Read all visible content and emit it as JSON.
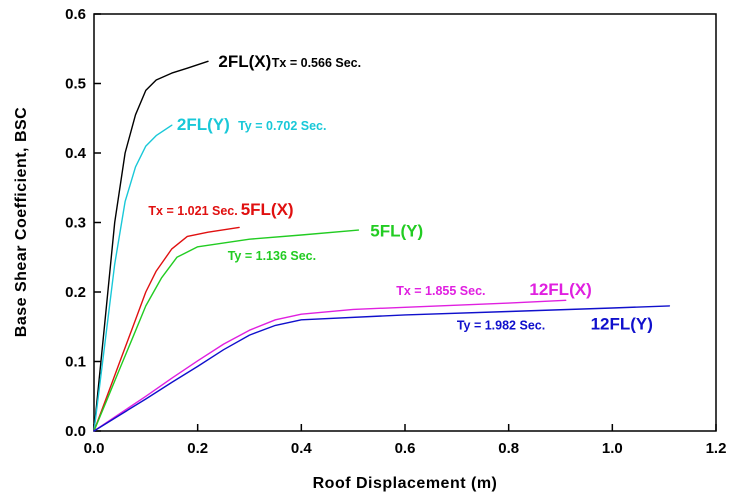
{
  "chart_data": {
    "type": "line",
    "title": "",
    "xlabel": "Roof Displacement (m)",
    "ylabel": "Base Shear Coefficient, BSC",
    "xlim": [
      0.0,
      1.2
    ],
    "ylim": [
      0.0,
      0.6
    ],
    "xticks": [
      0.0,
      0.2,
      0.4,
      0.6,
      0.8,
      1.0,
      1.2
    ],
    "yticks": [
      0.0,
      0.1,
      0.2,
      0.3,
      0.4,
      0.5,
      0.6
    ],
    "xtick_labels": [
      "0.0",
      "0.2",
      "0.4",
      "0.6",
      "0.8",
      "1.0",
      "1.2"
    ],
    "ytick_labels": [
      "0.0",
      "0.1",
      "0.2",
      "0.3",
      "0.4",
      "0.5",
      "0.6"
    ],
    "grid": false,
    "legend": "none",
    "series": [
      {
        "name": "2FL(X)",
        "color": "#000000",
        "x": [
          0.0,
          0.02,
          0.04,
          0.06,
          0.08,
          0.1,
          0.12,
          0.15,
          0.18,
          0.22
        ],
        "y": [
          0.0,
          0.15,
          0.3,
          0.4,
          0.455,
          0.49,
          0.505,
          0.515,
          0.522,
          0.532
        ]
      },
      {
        "name": "2FL(Y)",
        "color": "#19c8d8",
        "x": [
          0.0,
          0.02,
          0.04,
          0.06,
          0.08,
          0.1,
          0.12,
          0.15
        ],
        "y": [
          0.0,
          0.12,
          0.24,
          0.33,
          0.38,
          0.41,
          0.425,
          0.44
        ]
      },
      {
        "name": "5FL(X)",
        "color": "#e01010",
        "x": [
          0.0,
          0.025,
          0.05,
          0.075,
          0.1,
          0.12,
          0.15,
          0.18,
          0.22,
          0.28
        ],
        "y": [
          0.0,
          0.05,
          0.1,
          0.15,
          0.2,
          0.23,
          0.262,
          0.28,
          0.286,
          0.293
        ]
      },
      {
        "name": "5FL(Y)",
        "color": "#22cc22",
        "x": [
          0.0,
          0.025,
          0.05,
          0.075,
          0.1,
          0.13,
          0.16,
          0.2,
          0.3,
          0.4,
          0.51
        ],
        "y": [
          0.0,
          0.045,
          0.09,
          0.135,
          0.18,
          0.22,
          0.25,
          0.265,
          0.276,
          0.282,
          0.289
        ]
      },
      {
        "name": "12FL(X)",
        "color": "#e020e0",
        "x": [
          0.0,
          0.05,
          0.1,
          0.15,
          0.2,
          0.25,
          0.3,
          0.35,
          0.4,
          0.5,
          0.6,
          0.7,
          0.8,
          0.91
        ],
        "y": [
          0.0,
          0.025,
          0.05,
          0.076,
          0.101,
          0.125,
          0.145,
          0.16,
          0.168,
          0.175,
          0.178,
          0.181,
          0.184,
          0.188
        ]
      },
      {
        "name": "12FL(Y)",
        "color": "#1010cc",
        "x": [
          0.0,
          0.05,
          0.1,
          0.15,
          0.2,
          0.25,
          0.3,
          0.35,
          0.4,
          0.6,
          0.8,
          1.0,
          1.11
        ],
        "y": [
          0.0,
          0.023,
          0.046,
          0.07,
          0.093,
          0.117,
          0.138,
          0.152,
          0.16,
          0.167,
          0.172,
          0.177,
          0.18
        ]
      }
    ],
    "annotations": [
      {
        "id": "lbl-2fl-x",
        "text": "2FL(X)",
        "color": "#000000",
        "size": "big",
        "at": [
          0.24,
          0.524
        ]
      },
      {
        "id": "per-2fl-x",
        "text": "Tx = 0.566 Sec.",
        "color": "#000000",
        "size": "small",
        "at": [
          0.343,
          0.524
        ]
      },
      {
        "id": "lbl-2fl-y",
        "text": "2FL(Y)",
        "color": "#19c8d8",
        "size": "big",
        "at": [
          0.16,
          0.433
        ]
      },
      {
        "id": "per-2fl-y",
        "text": "Ty = 0.702 Sec.",
        "color": "#19c8d8",
        "size": "small",
        "at": [
          0.278,
          0.433
        ]
      },
      {
        "id": "per-5fl-x",
        "text": "Tx = 1.021 Sec.",
        "color": "#e01010",
        "size": "small",
        "at": [
          0.105,
          0.311
        ]
      },
      {
        "id": "lbl-5fl-x",
        "text": "5FL(X)",
        "color": "#e01010",
        "size": "big",
        "at": [
          0.283,
          0.311
        ]
      },
      {
        "id": "lbl-5fl-y",
        "text": "5FL(Y)",
        "color": "#22cc22",
        "size": "big",
        "at": [
          0.533,
          0.28
        ]
      },
      {
        "id": "per-5fl-y",
        "text": "Ty = 1.136 Sec.",
        "color": "#22cc22",
        "size": "small",
        "at": [
          0.258,
          0.246
        ]
      },
      {
        "id": "per-12fl-x",
        "text": "Tx = 1.855 Sec.",
        "color": "#e020e0",
        "size": "small",
        "at": [
          0.583,
          0.196
        ]
      },
      {
        "id": "lbl-12fl-x",
        "text": "12FL(X)",
        "color": "#e020e0",
        "size": "big",
        "at": [
          0.84,
          0.196
        ]
      },
      {
        "id": "per-12fl-y",
        "text": "Ty = 1.982 Sec.",
        "color": "#1010cc",
        "size": "small",
        "at": [
          0.7,
          0.146
        ]
      },
      {
        "id": "lbl-12fl-y",
        "text": "12FL(Y)",
        "color": "#1010cc",
        "size": "big",
        "at": [
          0.958,
          0.146
        ]
      }
    ]
  }
}
